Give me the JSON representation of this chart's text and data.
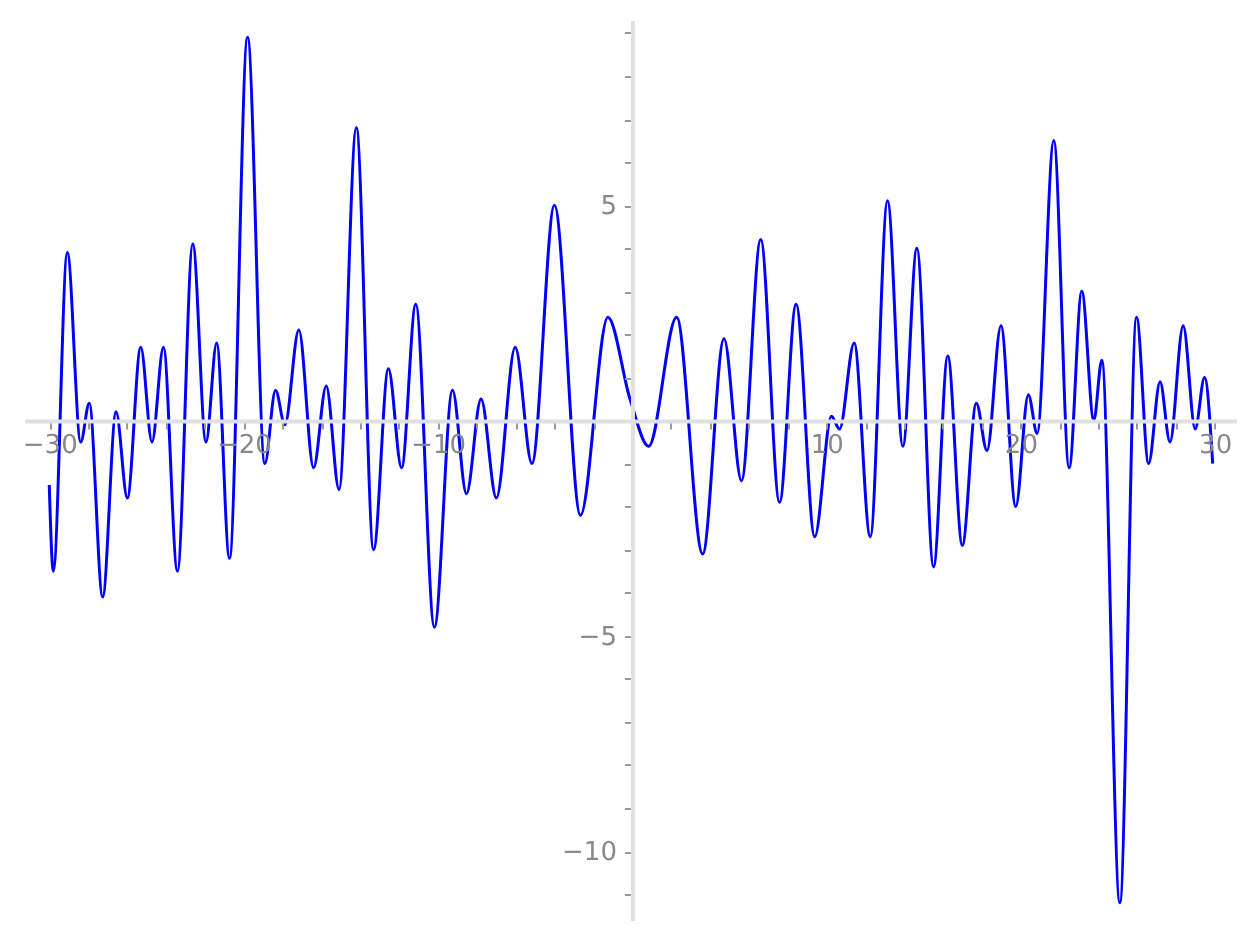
{
  "chart_data": {
    "type": "line",
    "color": "#0000ff",
    "line_style": "solid",
    "grid": false,
    "x": [
      -30.0,
      -29.79,
      -29.07,
      -28.38,
      -27.94,
      -27.25,
      -26.56,
      -25.98,
      -25.29,
      -24.71,
      -24.12,
      -23.4,
      -22.61,
      -21.93,
      -21.38,
      -20.72,
      -19.79,
      -18.9,
      -18.35,
      -17.87,
      -17.15,
      -16.39,
      -15.74,
      -15.08,
      -14.19,
      -13.3,
      -12.54,
      -11.86,
      -11.13,
      -10.17,
      -9.24,
      -8.52,
      -7.77,
      -6.98,
      -6.01,
      -5.15,
      -3.99,
      -2.65,
      -1.24,
      -0.1,
      0.86,
      2.3,
      3.64,
      4.74,
      5.64,
      6.63,
      7.6,
      8.45,
      9.41,
      10.27,
      10.69,
      11.44,
      12.27,
      13.16,
      13.95,
      14.67,
      15.53,
      16.26,
      17.01,
      17.73,
      18.28,
      19.0,
      19.76,
      20.41,
      20.86,
      21.72,
      22.51,
      23.16,
      23.78,
      24.19,
      25.12,
      25.98,
      26.6,
      27.19,
      27.7,
      28.38,
      29.0,
      29.48,
      29.9
    ],
    "values": [
      -1.5,
      -3.5,
      3.9,
      -0.5,
      0.4,
      -4.1,
      0.2,
      -1.8,
      1.7,
      -0.5,
      1.7,
      -3.5,
      4.1,
      -0.5,
      1.8,
      -3.2,
      8.9,
      -1.0,
      0.7,
      -0.1,
      2.1,
      -1.1,
      0.8,
      -1.6,
      6.8,
      -3.0,
      1.2,
      -1.1,
      2.7,
      -4.8,
      0.7,
      -1.7,
      0.5,
      -1.8,
      1.7,
      -1.0,
      5.0,
      -2.2,
      2.4,
      0.5,
      -0.6,
      2.4,
      -3.1,
      1.9,
      -1.4,
      4.2,
      -1.9,
      2.7,
      -2.7,
      0.1,
      -0.2,
      1.8,
      -2.7,
      5.1,
      -0.6,
      4.0,
      -3.4,
      1.5,
      -2.9,
      0.4,
      -0.7,
      2.2,
      -2.0,
      0.6,
      -0.3,
      6.5,
      -1.1,
      3.0,
      0.0,
      1.4,
      -11.2,
      2.4,
      -1.0,
      0.9,
      -0.5,
      2.2,
      -0.2,
      1.0,
      -1.0
    ],
    "xlim": [
      -31.3,
      31.1
    ],
    "ylim": [
      -11.6,
      9.3
    ],
    "xticks": [
      -30,
      {
        "value": -28,
        "label": null
      },
      {
        "value": -26,
        "label": null
      },
      {
        "value": -24,
        "label": null
      },
      {
        "value": -22,
        "label": null
      },
      -20,
      {
        "value": -18,
        "label": null
      },
      {
        "value": -16,
        "label": null
      },
      {
        "value": -14,
        "label": null
      },
      {
        "value": -12,
        "label": null
      },
      -10,
      {
        "value": -8,
        "label": null
      },
      {
        "value": -6,
        "label": null
      },
      {
        "value": -4,
        "label": null
      },
      {
        "value": -2,
        "label": null
      },
      {
        "value": 2,
        "label": null
      },
      {
        "value": 4,
        "label": null
      },
      {
        "value": 6,
        "label": null
      },
      {
        "value": 8,
        "label": null
      },
      10,
      {
        "value": 12,
        "label": null
      },
      {
        "value": 14,
        "label": null
      },
      {
        "value": 16,
        "label": null
      },
      {
        "value": 18,
        "label": null
      },
      20,
      {
        "value": 22,
        "label": null
      },
      {
        "value": 24,
        "label": null
      },
      {
        "value": 26,
        "label": null
      },
      {
        "value": 28,
        "label": null
      },
      30
    ],
    "yticks": [
      {
        "value": -11,
        "label": null
      },
      -10,
      {
        "value": -9,
        "label": null
      },
      {
        "value": -8,
        "label": null
      },
      {
        "value": -7,
        "label": null
      },
      {
        "value": -6,
        "label": null
      },
      -5,
      {
        "value": -4,
        "label": null
      },
      {
        "value": -3,
        "label": null
      },
      {
        "value": -2,
        "label": null
      },
      {
        "value": -1,
        "label": null
      },
      {
        "value": 1,
        "label": null
      },
      {
        "value": 2,
        "label": null
      },
      {
        "value": 3,
        "label": null
      },
      {
        "value": 4,
        "label": null
      },
      5,
      {
        "value": 6,
        "label": null
      },
      {
        "value": 7,
        "label": null
      },
      {
        "value": 8,
        "label": null
      },
      {
        "value": 9,
        "label": null
      }
    ]
  }
}
